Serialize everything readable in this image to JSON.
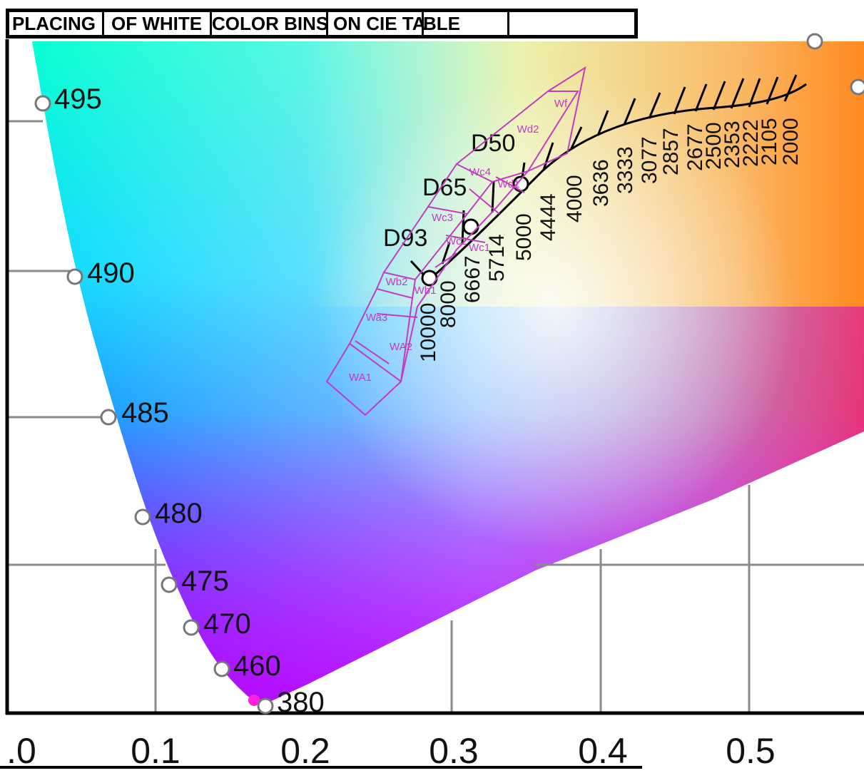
{
  "header": {
    "cells": [
      "PLACING",
      "OF WHITE",
      "COLOR BINS",
      "ON CIE TA",
      "BLE",
      ""
    ]
  },
  "axis": {
    "x_ticks": [
      ".0",
      "0.1",
      "0.2",
      "0.3",
      "0.4",
      "0.5"
    ]
  },
  "locus_labels": [
    "495",
    "490",
    "485",
    "480",
    "475",
    "470",
    "460",
    "380"
  ],
  "illuminants": [
    "D50",
    "D65",
    "D93"
  ],
  "cct_labels": [
    "10000",
    "8000",
    "6667",
    "5714",
    "5000",
    "4444",
    "4000",
    "3636",
    "3333",
    "3077",
    "2857",
    "2677",
    "2500",
    "2353",
    "2222",
    "2105",
    "2000"
  ],
  "bins": [
    "WA1",
    "WA2",
    "Wa3",
    "Wb1",
    "Wb2",
    "Wc1",
    "Wc2",
    "Wc3",
    "Wc4",
    "Wd1",
    "Wd2",
    "Wf"
  ],
  "colors": {
    "bin_outline": "#c23bc2",
    "grid": "#8a8a8a",
    "locus_marker": "#ffffff"
  }
}
